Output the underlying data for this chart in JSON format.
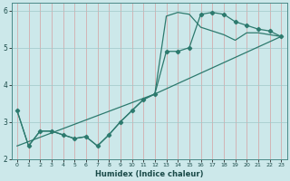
{
  "xlabel": "Humidex (Indice chaleur)",
  "bg_color": "#cce8ea",
  "line_color": "#2d7a6e",
  "grid_color_minor": "#e8c8c8",
  "grid_color_major": "#b8d8d8",
  "xlim": [
    -0.5,
    23.5
  ],
  "ylim": [
    2,
    6.2
  ],
  "yticks": [
    2,
    3,
    4,
    5,
    6
  ],
  "xticks": [
    0,
    1,
    2,
    3,
    4,
    5,
    6,
    7,
    8,
    9,
    10,
    11,
    12,
    13,
    14,
    15,
    16,
    17,
    18,
    19,
    20,
    21,
    22,
    23
  ],
  "line1_x": [
    0,
    1,
    2,
    3,
    4,
    5,
    6,
    7,
    8,
    9,
    10,
    11,
    12,
    13,
    14,
    15,
    16,
    17,
    18,
    19,
    20,
    21,
    22,
    23
  ],
  "line1_y": [
    3.3,
    2.35,
    2.75,
    2.75,
    2.65,
    2.55,
    2.6,
    2.35,
    2.65,
    3.0,
    3.3,
    3.6,
    3.75,
    4.9,
    4.9,
    5.0,
    5.9,
    5.95,
    5.9,
    5.7,
    5.6,
    5.5,
    5.45,
    5.3
  ],
  "line2_x": [
    0,
    1,
    2,
    3,
    4,
    5,
    6,
    7,
    8,
    9,
    10,
    11,
    12,
    13,
    14,
    15,
    16,
    17,
    18,
    19,
    20,
    21,
    22,
    23
  ],
  "line2_y": [
    3.3,
    2.35,
    2.75,
    2.75,
    2.65,
    2.55,
    2.6,
    2.35,
    2.65,
    3.0,
    3.3,
    3.6,
    3.75,
    5.85,
    5.95,
    5.9,
    5.55,
    5.45,
    5.35,
    5.2,
    5.4,
    5.4,
    5.35,
    5.3
  ],
  "line3_x": [
    0,
    12,
    23
  ],
  "line3_y": [
    2.35,
    3.75,
    5.3
  ]
}
